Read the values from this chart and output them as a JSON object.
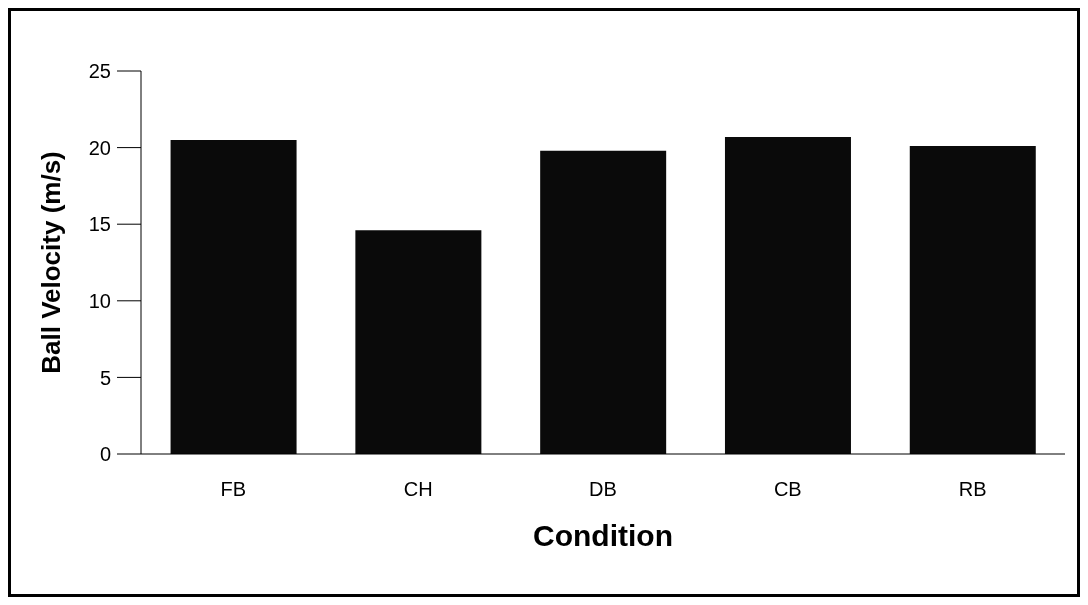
{
  "chart_data": {
    "type": "bar",
    "xlabel": "Condition",
    "ylabel": "Ball Velocity (m/s)",
    "categories": [
      "FB",
      "CH",
      "DB",
      "CB",
      "RB"
    ],
    "values": [
      20.5,
      14.6,
      19.8,
      20.7,
      20.1
    ],
    "color": "#0a0a0a",
    "ylim": [
      0,
      25
    ],
    "yticks": [
      0,
      5,
      10,
      15,
      20,
      25
    ],
    "grid": false,
    "legend": false
  }
}
